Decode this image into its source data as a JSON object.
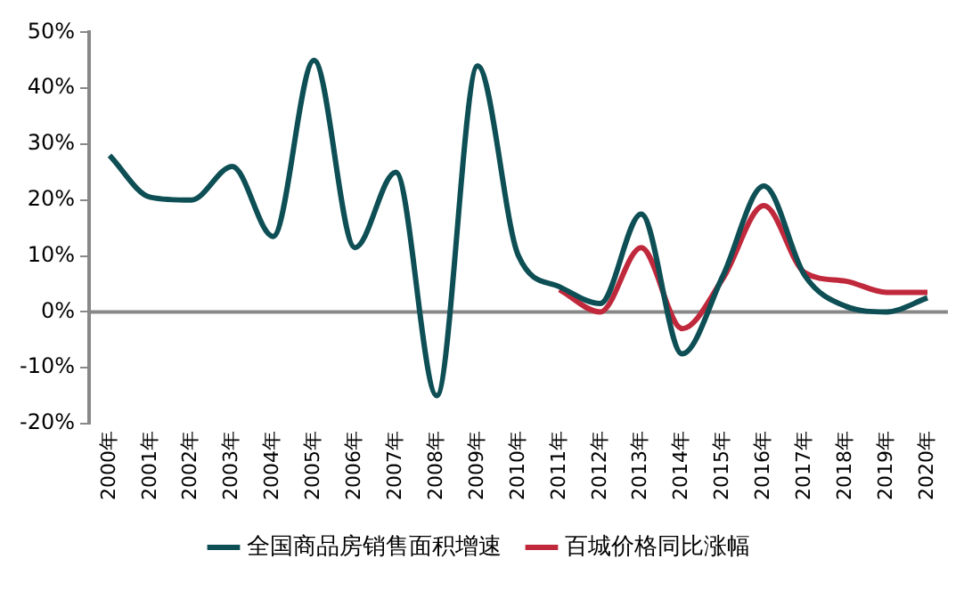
{
  "chart_data": {
    "type": "line",
    "categories": [
      "2000年",
      "2001年",
      "2002年",
      "2003年",
      "2004年",
      "2005年",
      "2006年",
      "2007年",
      "2008年",
      "2009年",
      "2010年",
      "2011年",
      "2012年",
      "2013年",
      "2014年",
      "2015年",
      "2016年",
      "2017年",
      "2018年",
      "2019年",
      "2020年"
    ],
    "series": [
      {
        "name": "全国商品房销售面积增速",
        "color": "#0d4f55",
        "values": [
          28,
          20.5,
          20,
          26,
          13.5,
          45,
          11.5,
          25,
          -15,
          44,
          10,
          4.5,
          1.5,
          17.5,
          -7.5,
          6.5,
          22.5,
          6.5,
          1,
          0,
          2.5
        ]
      },
      {
        "name": "百城价格同比涨幅",
        "color": "#c0283c",
        "values": [
          null,
          null,
          null,
          null,
          null,
          null,
          null,
          null,
          null,
          null,
          null,
          4,
          0,
          11.5,
          -3,
          6,
          19,
          7,
          5.5,
          3.5,
          3.5
        ]
      }
    ],
    "ylim": [
      -20,
      50
    ],
    "yticks": [
      {
        "value": -20,
        "label": "-20%"
      },
      {
        "value": -10,
        "label": "-10%"
      },
      {
        "value": 0,
        "label": "0%"
      },
      {
        "value": 10,
        "label": "10%"
      },
      {
        "value": 20,
        "label": "20%"
      },
      {
        "value": 30,
        "label": "30%"
      },
      {
        "value": 40,
        "label": "40%"
      },
      {
        "value": 50,
        "label": "50%"
      }
    ],
    "ref_lines": [
      {
        "axis": "y",
        "value": 0,
        "color": "#888888"
      }
    ],
    "grid": false,
    "legend": "bottom",
    "marker": "none",
    "line_style": "solid"
  }
}
